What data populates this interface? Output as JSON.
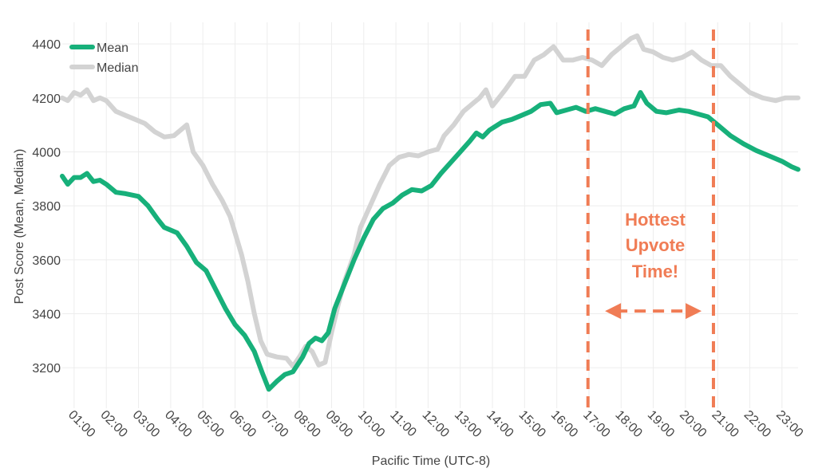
{
  "chart_data": {
    "type": "line",
    "xlabel": "Pacific Time (UTC-8)",
    "ylabel": "Post Score (Mean, Median)",
    "xlim": [
      0.63,
      23.5
    ],
    "ylim": [
      3050,
      4480
    ],
    "x_ticks": [
      "01:00",
      "02:00",
      "03:00",
      "04:00",
      "05:00",
      "06:00",
      "07:00",
      "08:00",
      "09:00",
      "10:00",
      "11:00",
      "12:00",
      "13:00",
      "14:00",
      "15:00",
      "16:00",
      "17:00",
      "18:00",
      "19:00",
      "20:00",
      "21:00",
      "22:00",
      "23:00"
    ],
    "y_ticks": [
      3200,
      3400,
      3600,
      3800,
      4000,
      4200,
      4400
    ],
    "grid": true,
    "legend_position": "top-left",
    "series": [
      {
        "name": "Mean",
        "color": "#17b07a",
        "points": [
          [
            0.63,
            3910
          ],
          [
            0.8,
            3880
          ],
          [
            1.0,
            3905
          ],
          [
            1.2,
            3905
          ],
          [
            1.4,
            3920
          ],
          [
            1.6,
            3890
          ],
          [
            1.8,
            3895
          ],
          [
            2.0,
            3880
          ],
          [
            2.3,
            3850
          ],
          [
            2.6,
            3845
          ],
          [
            3.0,
            3835
          ],
          [
            3.3,
            3800
          ],
          [
            3.6,
            3750
          ],
          [
            3.8,
            3720
          ],
          [
            4.2,
            3700
          ],
          [
            4.5,
            3650
          ],
          [
            4.8,
            3590
          ],
          [
            5.1,
            3560
          ],
          [
            5.4,
            3490
          ],
          [
            5.7,
            3420
          ],
          [
            6.0,
            3360
          ],
          [
            6.3,
            3320
          ],
          [
            6.6,
            3260
          ],
          [
            6.85,
            3180
          ],
          [
            7.05,
            3120
          ],
          [
            7.3,
            3150
          ],
          [
            7.55,
            3175
          ],
          [
            7.8,
            3185
          ],
          [
            8.1,
            3240
          ],
          [
            8.3,
            3290
          ],
          [
            8.5,
            3310
          ],
          [
            8.7,
            3300
          ],
          [
            8.9,
            3330
          ],
          [
            9.1,
            3420
          ],
          [
            9.4,
            3510
          ],
          [
            9.7,
            3600
          ],
          [
            10.0,
            3680
          ],
          [
            10.3,
            3750
          ],
          [
            10.6,
            3790
          ],
          [
            10.9,
            3810
          ],
          [
            11.2,
            3840
          ],
          [
            11.5,
            3860
          ],
          [
            11.8,
            3855
          ],
          [
            12.1,
            3875
          ],
          [
            12.4,
            3920
          ],
          [
            12.7,
            3960
          ],
          [
            13.0,
            4000
          ],
          [
            13.3,
            4040
          ],
          [
            13.5,
            4070
          ],
          [
            13.7,
            4055
          ],
          [
            13.9,
            4080
          ],
          [
            14.1,
            4095
          ],
          [
            14.3,
            4110
          ],
          [
            14.6,
            4120
          ],
          [
            14.9,
            4135
          ],
          [
            15.2,
            4150
          ],
          [
            15.5,
            4175
          ],
          [
            15.8,
            4180
          ],
          [
            16.0,
            4145
          ],
          [
            16.3,
            4155
          ],
          [
            16.6,
            4165
          ],
          [
            16.9,
            4150
          ],
          [
            17.2,
            4160
          ],
          [
            17.5,
            4150
          ],
          [
            17.8,
            4140
          ],
          [
            18.1,
            4160
          ],
          [
            18.4,
            4170
          ],
          [
            18.6,
            4220
          ],
          [
            18.8,
            4180
          ],
          [
            19.1,
            4150
          ],
          [
            19.4,
            4145
          ],
          [
            19.6,
            4150
          ],
          [
            19.8,
            4155
          ],
          [
            20.1,
            4150
          ],
          [
            20.4,
            4140
          ],
          [
            20.7,
            4130
          ],
          [
            21.0,
            4100
          ],
          [
            21.4,
            4060
          ],
          [
            21.8,
            4030
          ],
          [
            22.2,
            4005
          ],
          [
            22.6,
            3985
          ],
          [
            23.0,
            3965
          ],
          [
            23.3,
            3945
          ],
          [
            23.5,
            3935
          ]
        ]
      },
      {
        "name": "Median",
        "color": "#d3d3d3",
        "points": [
          [
            0.63,
            4200
          ],
          [
            0.8,
            4190
          ],
          [
            1.0,
            4220
          ],
          [
            1.2,
            4210
          ],
          [
            1.4,
            4230
          ],
          [
            1.6,
            4190
          ],
          [
            1.8,
            4200
          ],
          [
            2.0,
            4190
          ],
          [
            2.3,
            4150
          ],
          [
            2.6,
            4135
          ],
          [
            2.9,
            4120
          ],
          [
            3.2,
            4105
          ],
          [
            3.5,
            4075
          ],
          [
            3.8,
            4055
          ],
          [
            4.1,
            4060
          ],
          [
            4.3,
            4080
          ],
          [
            4.5,
            4100
          ],
          [
            4.7,
            4000
          ],
          [
            5.0,
            3950
          ],
          [
            5.3,
            3880
          ],
          [
            5.6,
            3820
          ],
          [
            5.85,
            3760
          ],
          [
            6.0,
            3700
          ],
          [
            6.2,
            3620
          ],
          [
            6.4,
            3520
          ],
          [
            6.6,
            3400
          ],
          [
            6.8,
            3300
          ],
          [
            7.0,
            3250
          ],
          [
            7.3,
            3240
          ],
          [
            7.6,
            3235
          ],
          [
            7.8,
            3205
          ],
          [
            8.0,
            3240
          ],
          [
            8.2,
            3280
          ],
          [
            8.4,
            3260
          ],
          [
            8.6,
            3210
          ],
          [
            8.8,
            3220
          ],
          [
            9.0,
            3330
          ],
          [
            9.2,
            3430
          ],
          [
            9.4,
            3520
          ],
          [
            9.7,
            3620
          ],
          [
            9.9,
            3720
          ],
          [
            10.2,
            3800
          ],
          [
            10.5,
            3880
          ],
          [
            10.8,
            3950
          ],
          [
            11.1,
            3980
          ],
          [
            11.4,
            3990
          ],
          [
            11.7,
            3985
          ],
          [
            12.0,
            4000
          ],
          [
            12.3,
            4010
          ],
          [
            12.5,
            4060
          ],
          [
            12.8,
            4100
          ],
          [
            13.1,
            4150
          ],
          [
            13.4,
            4180
          ],
          [
            13.6,
            4200
          ],
          [
            13.8,
            4230
          ],
          [
            14.0,
            4170
          ],
          [
            14.2,
            4200
          ],
          [
            14.4,
            4230
          ],
          [
            14.7,
            4280
          ],
          [
            15.0,
            4280
          ],
          [
            15.3,
            4340
          ],
          [
            15.6,
            4360
          ],
          [
            15.9,
            4390
          ],
          [
            16.2,
            4340
          ],
          [
            16.5,
            4340
          ],
          [
            16.8,
            4350
          ],
          [
            17.1,
            4340
          ],
          [
            17.4,
            4320
          ],
          [
            17.7,
            4360
          ],
          [
            18.0,
            4390
          ],
          [
            18.3,
            4420
          ],
          [
            18.5,
            4430
          ],
          [
            18.7,
            4380
          ],
          [
            19.0,
            4370
          ],
          [
            19.3,
            4350
          ],
          [
            19.6,
            4340
          ],
          [
            19.9,
            4350
          ],
          [
            20.2,
            4370
          ],
          [
            20.5,
            4340
          ],
          [
            20.8,
            4320
          ],
          [
            21.1,
            4320
          ],
          [
            21.4,
            4280
          ],
          [
            21.7,
            4250
          ],
          [
            22.0,
            4220
          ],
          [
            22.4,
            4200
          ],
          [
            22.8,
            4190
          ],
          [
            23.1,
            4200
          ],
          [
            23.5,
            4200
          ]
        ]
      }
    ],
    "vertical_markers": [
      {
        "x": 16.97,
        "color": "#f07c55",
        "style": "dashed"
      },
      {
        "x": 20.87,
        "color": "#f07c55",
        "style": "dashed"
      }
    ],
    "annotation": {
      "lines": [
        "Hottest",
        "Upvote",
        "Time!"
      ],
      "color": "#f07c55",
      "arrow_from_x": 17.5,
      "arrow_to_x": 20.5,
      "arrow_y": 3410
    }
  }
}
